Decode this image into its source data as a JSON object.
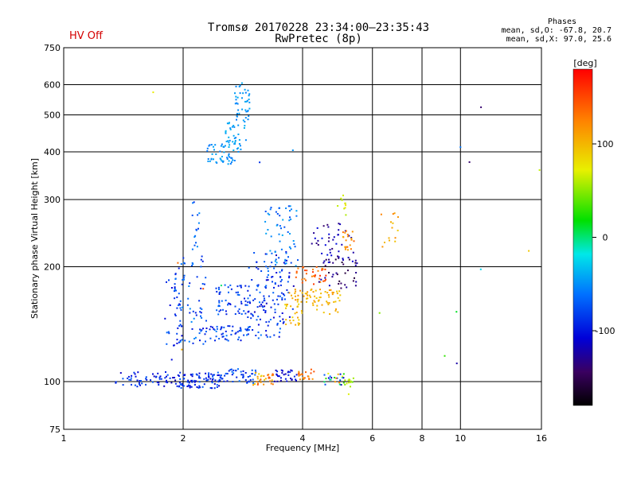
{
  "header": {
    "title": "Tromsø 20170228 23:34:00–23:35:43",
    "subtitle": "RwPretec (8p)",
    "status": "HV Off",
    "stats": {
      "title": "Phases",
      "line_o": "mean, sd,O: -67.8, 20.7",
      "line_x": "mean, sd,X:  97.0, 25.6"
    }
  },
  "colors": {
    "status": "#d40000",
    "grid": "#000000",
    "axes": "#000000"
  },
  "chart_data": {
    "type": "scatter",
    "xlabel": "Frequency [MHz]",
    "ylabel": "Stationary phase Virtual Height [km]",
    "x_scale": "log",
    "y_scale": "log",
    "xlim": [
      1,
      16
    ],
    "ylim": [
      75,
      750
    ],
    "x_ticks": [
      1,
      2,
      4,
      6,
      8,
      10,
      16
    ],
    "x_gridlines": [
      2,
      4,
      6,
      8,
      10
    ],
    "y_ticks": [
      75,
      100,
      200,
      300,
      400,
      500,
      600,
      750
    ],
    "y_gridlines": [
      100,
      200,
      300,
      400,
      500,
      600
    ],
    "grid": true,
    "colorbar": {
      "label": "[deg]",
      "range": [
        -180,
        180
      ],
      "ticks": [
        100,
        0,
        -100
      ],
      "colormap": "rainbow"
    },
    "clusters": [
      {
        "x": [
          1.05,
          16
        ],
        "y": [
          75,
          750
        ],
        "n": 18,
        "phase": [
          -180,
          180
        ]
      },
      {
        "x": [
          1.35,
          1.95
        ],
        "y": [
          97,
          106
        ],
        "n": 60,
        "phase": [
          -120,
          -70
        ]
      },
      {
        "x": [
          1.95,
          2.5
        ],
        "y": [
          96,
          106
        ],
        "n": 90,
        "phase": [
          -115,
          -65
        ]
      },
      {
        "x": [
          2.5,
          3.05
        ],
        "y": [
          99,
          108
        ],
        "n": 45,
        "phase": [
          -110,
          -60
        ]
      },
      {
        "x": [
          3.0,
          3.4
        ],
        "y": [
          98,
          106
        ],
        "n": 30,
        "phase": [
          80,
          150
        ]
      },
      {
        "x": [
          3.4,
          3.9
        ],
        "y": [
          100,
          108
        ],
        "n": 30,
        "phase": [
          -120,
          -90
        ]
      },
      {
        "x": [
          3.9,
          4.3
        ],
        "y": [
          100,
          108
        ],
        "n": 20,
        "phase": [
          110,
          150
        ]
      },
      {
        "x": [
          4.5,
          5.1
        ],
        "y": [
          98,
          105
        ],
        "n": 25,
        "phase": [
          -130,
          130
        ]
      },
      {
        "x": [
          5.1,
          5.4
        ],
        "y": [
          97,
          103
        ],
        "n": 12,
        "phase": [
          40,
          70
        ]
      },
      {
        "x": [
          1.8,
          2.0
        ],
        "y": [
          110,
          190
        ],
        "n": 30,
        "phase": [
          -110,
          -60
        ]
      },
      {
        "x": [
          1.9,
          2.3
        ],
        "y": [
          125,
          215
        ],
        "n": 70,
        "phase": [
          -100,
          -50
        ]
      },
      {
        "x": [
          2.1,
          2.2
        ],
        "y": [
          220,
          300
        ],
        "n": 15,
        "phase": [
          -90,
          -50
        ]
      },
      {
        "x": [
          2.2,
          3.1
        ],
        "y": [
          128,
          140
        ],
        "n": 60,
        "phase": [
          -110,
          -55
        ]
      },
      {
        "x": [
          2.4,
          2.95
        ],
        "y": [
          150,
          180
        ],
        "n": 60,
        "phase": [
          -100,
          -60
        ]
      },
      {
        "x": [
          2.9,
          3.6
        ],
        "y": [
          130,
          200
        ],
        "n": 70,
        "phase": [
          -110,
          -55
        ]
      },
      {
        "x": [
          3.0,
          3.8
        ],
        "y": [
          140,
          220
        ],
        "n": 60,
        "phase": [
          -120,
          -60
        ]
      },
      {
        "x": [
          3.2,
          3.9
        ],
        "y": [
          200,
          290
        ],
        "n": 60,
        "phase": [
          -80,
          -40
        ]
      },
      {
        "x": [
          3.6,
          4.0
        ],
        "y": [
          140,
          160
        ],
        "n": 25,
        "phase": [
          80,
          110
        ]
      },
      {
        "x": [
          3.7,
          4.3
        ],
        "y": [
          160,
          175
        ],
        "n": 25,
        "phase": [
          90,
          120
        ]
      },
      {
        "x": [
          3.8,
          4.6
        ],
        "y": [
          180,
          200
        ],
        "n": 35,
        "phase": [
          120,
          160
        ]
      },
      {
        "x": [
          4.0,
          5.0
        ],
        "y": [
          150,
          175
        ],
        "n": 45,
        "phase": [
          90,
          115
        ]
      },
      {
        "x": [
          4.4,
          5.5
        ],
        "y": [
          175,
          210
        ],
        "n": 40,
        "phase": [
          -160,
          -110
        ]
      },
      {
        "x": [
          4.2,
          5.4
        ],
        "y": [
          210,
          260
        ],
        "n": 40,
        "phase": [
          -140,
          -100
        ]
      },
      {
        "x": [
          5.0,
          5.4
        ],
        "y": [
          220,
          250
        ],
        "n": 20,
        "phase": [
          100,
          140
        ]
      },
      {
        "x": [
          4.9,
          5.2
        ],
        "y": [
          270,
          310
        ],
        "n": 10,
        "phase": [
          50,
          80
        ]
      },
      {
        "x": [
          6.3,
          7.0
        ],
        "y": [
          220,
          280
        ],
        "n": 14,
        "phase": [
          90,
          130
        ]
      },
      {
        "x": [
          2.3,
          2.7
        ],
        "y": [
          370,
          420
        ],
        "n": 45,
        "phase": [
          -60,
          -40
        ]
      },
      {
        "x": [
          2.55,
          2.9
        ],
        "y": [
          400,
          480
        ],
        "n": 40,
        "phase": [
          -55,
          -35
        ]
      },
      {
        "x": [
          2.7,
          2.95
        ],
        "y": [
          480,
          620
        ],
        "n": 40,
        "phase": [
          -60,
          -40
        ]
      }
    ]
  }
}
